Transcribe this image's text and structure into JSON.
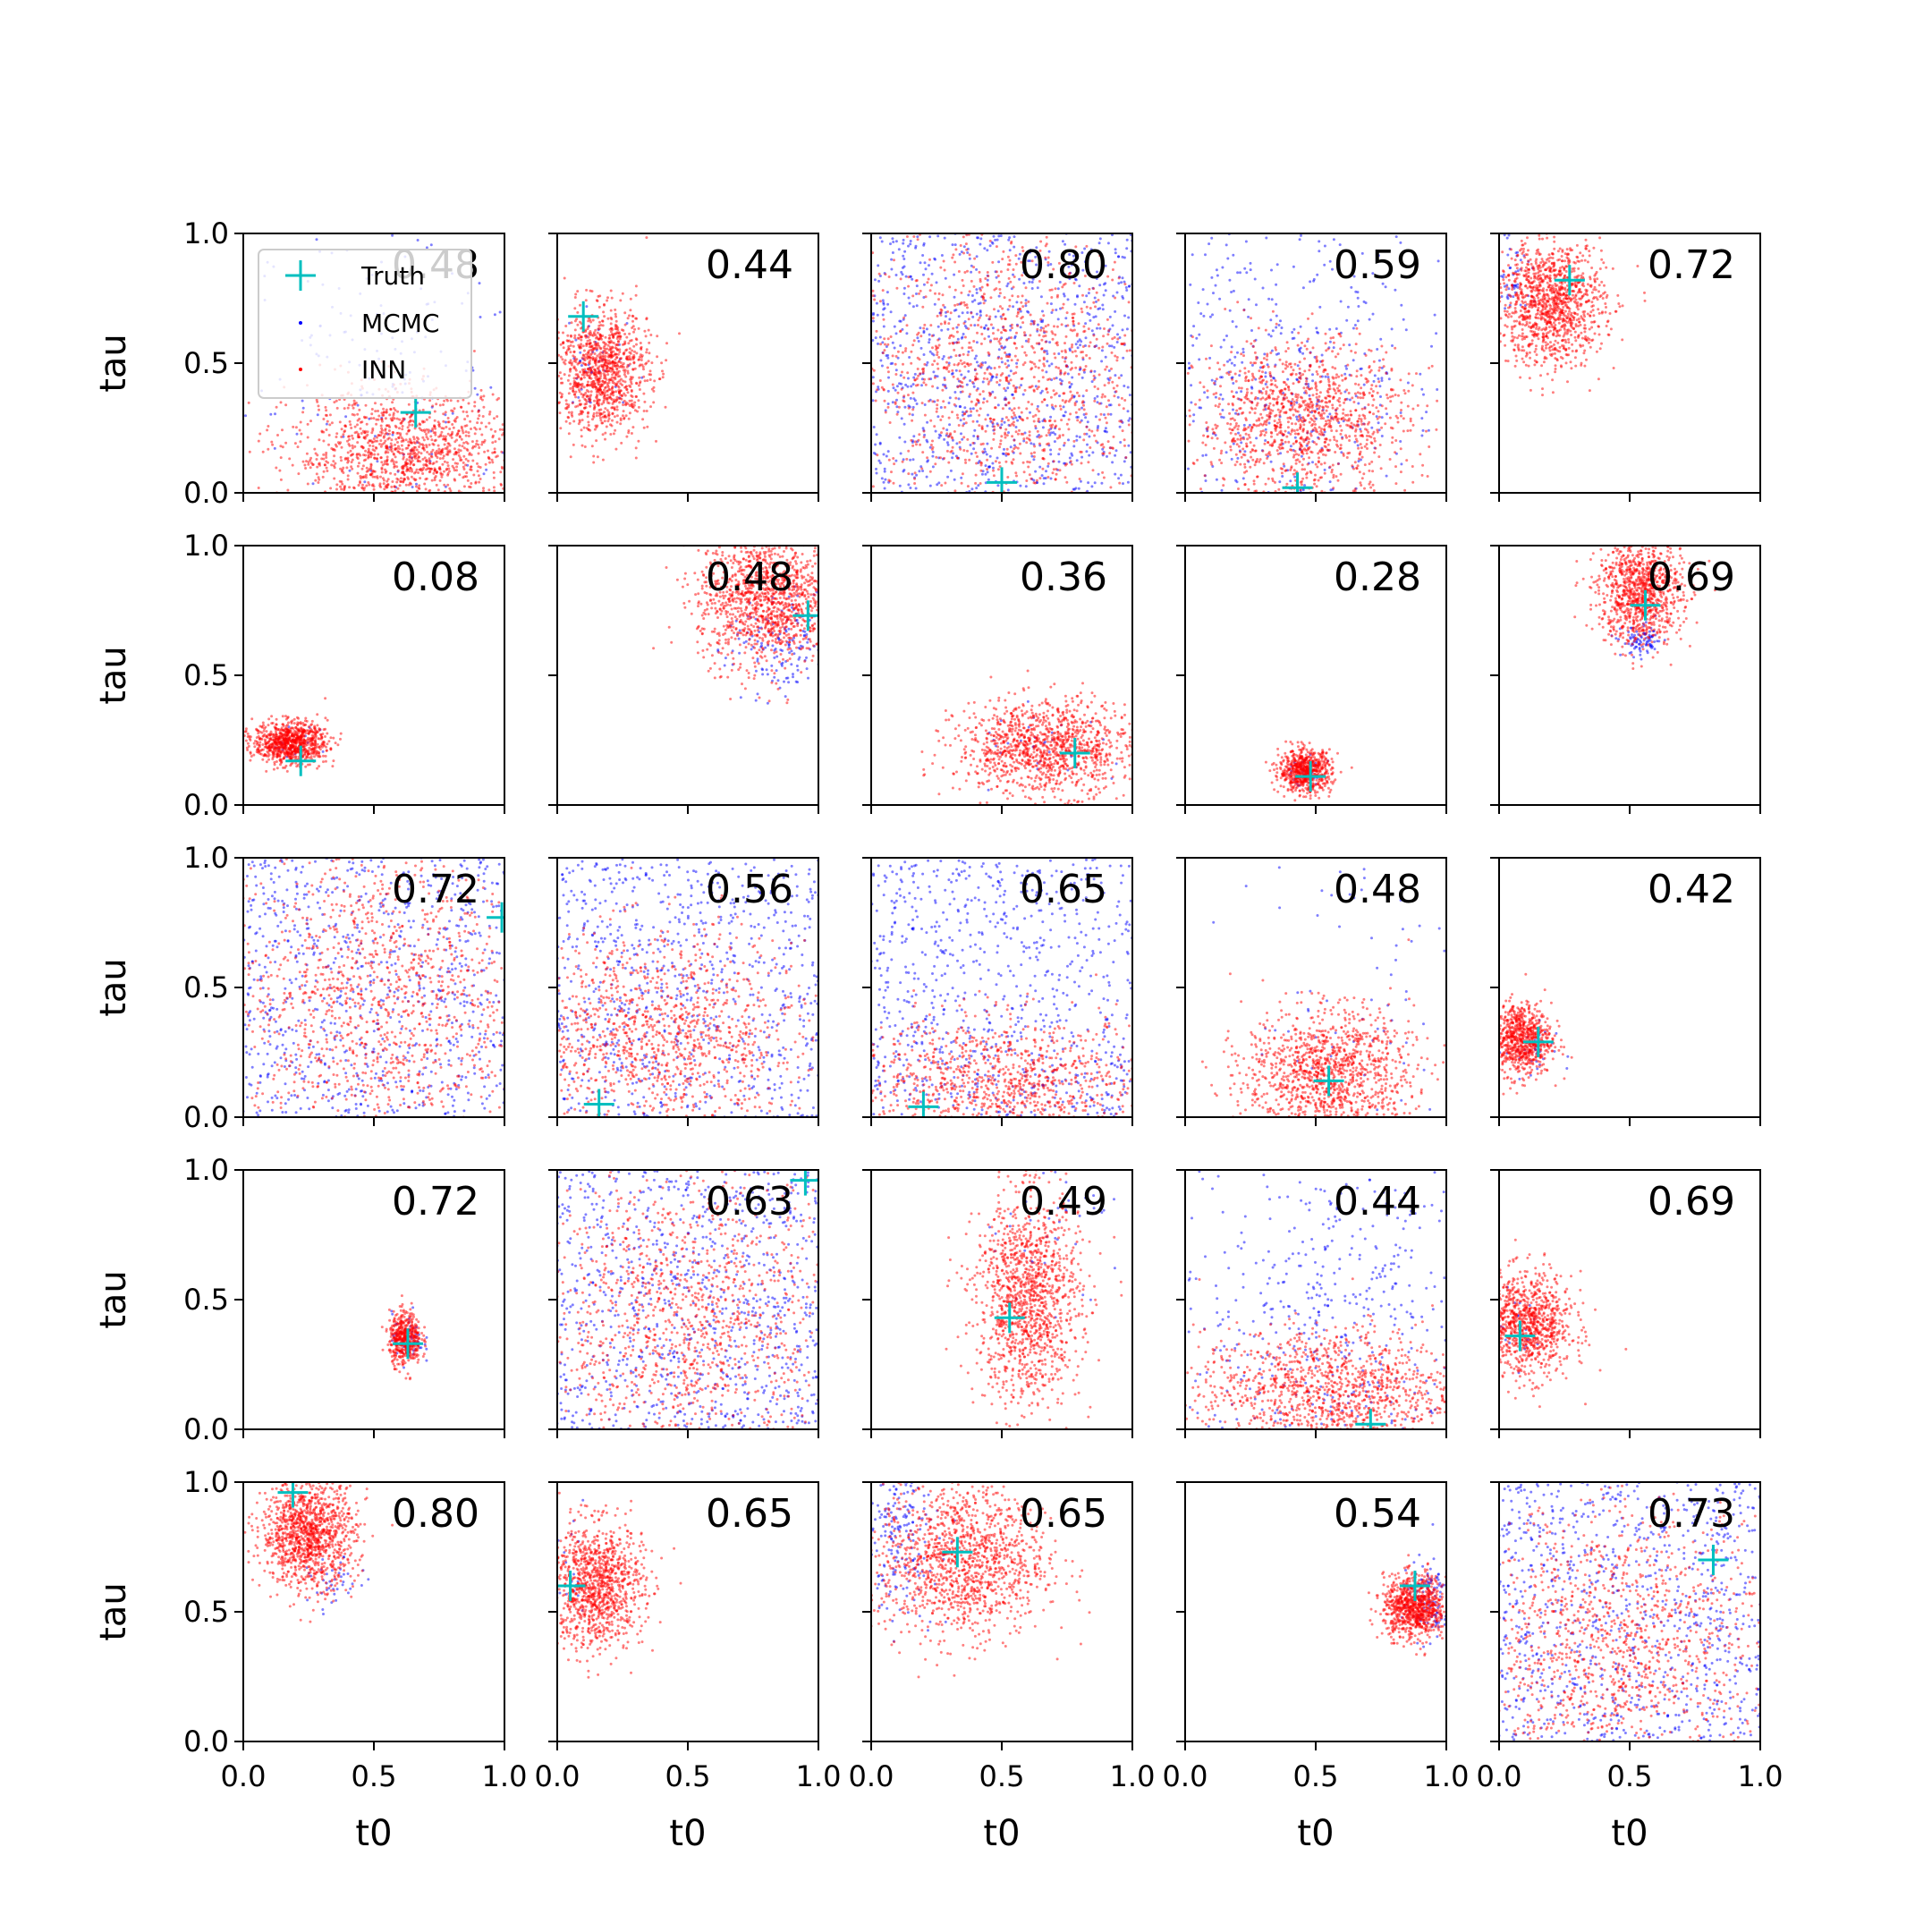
{
  "figure": {
    "ylabel": "tau",
    "xlabel": "t0",
    "legend": {
      "placement": "upper-left of first panel",
      "entries": [
        "Truth",
        "MCMC",
        "INN"
      ]
    },
    "colors": {
      "mcmc": "#0000ff",
      "inn": "#ff0000",
      "truth": "#00bfbf",
      "axis": "#000000"
    }
  },
  "chart_data": {
    "type": "scatter",
    "layout": "5x5 grid of panels",
    "xlabel": "t0",
    "ylabel": "tau",
    "xlim": [
      0,
      1
    ],
    "ylim": [
      0,
      1
    ],
    "xticks": [
      "0.0",
      "0.5",
      "1.0"
    ],
    "yticks": [
      "0.0",
      "0.5",
      "1.0"
    ],
    "grid": false,
    "legend": "upper-left",
    "series_names": [
      "Truth",
      "MCMC",
      "INN"
    ],
    "panels": [
      {
        "score": "0.48",
        "truth": [
          0.66,
          0.31
        ],
        "inn": {
          "cx": 0.62,
          "cy": 0.15,
          "sx": 0.22,
          "sy": 0.12,
          "n": 1300
        },
        "mcmc": {
          "cx": 0.6,
          "cy": 0.45,
          "sx": 0.28,
          "sy": 0.3,
          "n": 180
        }
      },
      {
        "score": "0.44",
        "truth": [
          0.1,
          0.68
        ],
        "inn": {
          "cx": 0.17,
          "cy": 0.47,
          "sx": 0.09,
          "sy": 0.12,
          "n": 1100
        },
        "mcmc": {
          "cx": 0.15,
          "cy": 0.5,
          "sx": 0.08,
          "sy": 0.1,
          "n": 40
        }
      },
      {
        "score": "0.80",
        "truth": [
          0.5,
          0.04
        ],
        "inn": {
          "cx": 0.5,
          "cy": 0.45,
          "sx": 0.3,
          "sy": 0.3,
          "n": 1300
        },
        "mcmc": {
          "cx": 0.5,
          "cy": 0.5,
          "sx": 0.6,
          "sy": 0.6,
          "n": 900
        }
      },
      {
        "score": "0.59",
        "truth": [
          0.43,
          0.02
        ],
        "inn": {
          "cx": 0.45,
          "cy": 0.28,
          "sx": 0.2,
          "sy": 0.15,
          "n": 1200
        },
        "mcmc": {
          "cx": 0.35,
          "cy": 0.4,
          "sx": 0.35,
          "sy": 0.35,
          "n": 600
        }
      },
      {
        "score": "0.72",
        "truth": [
          0.27,
          0.82
        ],
        "inn": {
          "cx": 0.2,
          "cy": 0.73,
          "sx": 0.1,
          "sy": 0.12,
          "n": 1200
        },
        "mcmc": {
          "cx": 0.05,
          "cy": 0.85,
          "sx": 0.05,
          "sy": 0.1,
          "n": 60
        }
      },
      {
        "score": "0.08",
        "truth": [
          0.22,
          0.17
        ],
        "inn": {
          "cx": 0.18,
          "cy": 0.24,
          "sx": 0.07,
          "sy": 0.04,
          "n": 900
        },
        "mcmc": {
          "cx": 0.18,
          "cy": 0.24,
          "sx": 0.06,
          "sy": 0.03,
          "n": 20
        }
      },
      {
        "score": "0.48",
        "truth": [
          0.96,
          0.73
        ],
        "inn": {
          "cx": 0.8,
          "cy": 0.8,
          "sx": 0.13,
          "sy": 0.13,
          "n": 1300
        },
        "mcmc": {
          "cx": 0.85,
          "cy": 0.6,
          "sx": 0.1,
          "sy": 0.1,
          "n": 150
        }
      },
      {
        "score": "0.36",
        "truth": [
          0.78,
          0.2
        ],
        "inn": {
          "cx": 0.67,
          "cy": 0.22,
          "sx": 0.17,
          "sy": 0.09,
          "n": 1200
        },
        "mcmc": {
          "cx": 0.7,
          "cy": 0.2,
          "sx": 0.15,
          "sy": 0.08,
          "n": 30
        }
      },
      {
        "score": "0.28",
        "truth": [
          0.48,
          0.11
        ],
        "inn": {
          "cx": 0.46,
          "cy": 0.13,
          "sx": 0.05,
          "sy": 0.04,
          "n": 700
        },
        "mcmc": {
          "cx": 0.45,
          "cy": 0.13,
          "sx": 0.04,
          "sy": 0.03,
          "n": 30
        }
      },
      {
        "score": "0.69",
        "truth": [
          0.56,
          0.77
        ],
        "inn": {
          "cx": 0.54,
          "cy": 0.82,
          "sx": 0.08,
          "sy": 0.1,
          "n": 1000
        },
        "mcmc": {
          "cx": 0.55,
          "cy": 0.63,
          "sx": 0.04,
          "sy": 0.03,
          "n": 90
        }
      },
      {
        "score": "0.72",
        "truth": [
          0.99,
          0.77
        ],
        "inn": {
          "cx": 0.5,
          "cy": 0.45,
          "sx": 0.32,
          "sy": 0.3,
          "n": 1300
        },
        "mcmc": {
          "cx": 0.55,
          "cy": 0.5,
          "sx": 0.6,
          "sy": 0.6,
          "n": 800
        }
      },
      {
        "score": "0.56",
        "truth": [
          0.16,
          0.05
        ],
        "inn": {
          "cx": 0.4,
          "cy": 0.3,
          "sx": 0.28,
          "sy": 0.2,
          "n": 1200
        },
        "mcmc": {
          "cx": 0.5,
          "cy": 0.5,
          "sx": 0.6,
          "sy": 0.6,
          "n": 800
        }
      },
      {
        "score": "0.65",
        "truth": [
          0.2,
          0.04
        ],
        "inn": {
          "cx": 0.5,
          "cy": 0.12,
          "sx": 0.3,
          "sy": 0.13,
          "n": 1100
        },
        "mcmc": {
          "cx": 0.5,
          "cy": 0.5,
          "sx": 0.6,
          "sy": 0.6,
          "n": 800
        }
      },
      {
        "score": "0.48",
        "truth": [
          0.55,
          0.14
        ],
        "inn": {
          "cx": 0.55,
          "cy": 0.17,
          "sx": 0.16,
          "sy": 0.12,
          "n": 1200
        },
        "mcmc": {
          "cx": 0.6,
          "cy": 0.5,
          "sx": 0.25,
          "sy": 0.4,
          "n": 80
        }
      },
      {
        "score": "0.42",
        "truth": [
          0.15,
          0.29
        ],
        "inn": {
          "cx": 0.08,
          "cy": 0.3,
          "sx": 0.06,
          "sy": 0.07,
          "n": 800
        },
        "mcmc": {
          "cx": 0.12,
          "cy": 0.25,
          "sx": 0.05,
          "sy": 0.06,
          "n": 30
        }
      },
      {
        "score": "0.72",
        "truth": [
          0.63,
          0.33
        ],
        "inn": {
          "cx": 0.62,
          "cy": 0.35,
          "sx": 0.03,
          "sy": 0.05,
          "n": 500
        },
        "mcmc": {
          "cx": 0.63,
          "cy": 0.35,
          "sx": 0.03,
          "sy": 0.05,
          "n": 60
        }
      },
      {
        "score": "0.63",
        "truth": [
          0.95,
          0.96
        ],
        "inn": {
          "cx": 0.5,
          "cy": 0.4,
          "sx": 0.3,
          "sy": 0.3,
          "n": 1300
        },
        "mcmc": {
          "cx": 0.5,
          "cy": 0.5,
          "sx": 0.6,
          "sy": 0.6,
          "n": 900
        }
      },
      {
        "score": "0.49",
        "truth": [
          0.53,
          0.43
        ],
        "inn": {
          "cx": 0.6,
          "cy": 0.5,
          "sx": 0.1,
          "sy": 0.2,
          "n": 1300
        },
        "mcmc": {
          "cx": 0.7,
          "cy": 0.8,
          "sx": 0.15,
          "sy": 0.15,
          "n": 40
        }
      },
      {
        "score": "0.44",
        "truth": [
          0.71,
          0.02
        ],
        "inn": {
          "cx": 0.55,
          "cy": 0.15,
          "sx": 0.25,
          "sy": 0.12,
          "n": 1200
        },
        "mcmc": {
          "cx": 0.6,
          "cy": 0.45,
          "sx": 0.35,
          "sy": 0.35,
          "n": 600
        }
      },
      {
        "score": "0.69",
        "truth": [
          0.08,
          0.36
        ],
        "inn": {
          "cx": 0.1,
          "cy": 0.4,
          "sx": 0.09,
          "sy": 0.1,
          "n": 1000
        },
        "mcmc": {
          "cx": 0.05,
          "cy": 0.4,
          "sx": 0.04,
          "sy": 0.06,
          "n": 20
        }
      },
      {
        "score": "0.80",
        "truth": [
          0.19,
          0.96
        ],
        "inn": {
          "cx": 0.25,
          "cy": 0.8,
          "sx": 0.09,
          "sy": 0.1,
          "n": 1200
        },
        "mcmc": {
          "cx": 0.35,
          "cy": 0.6,
          "sx": 0.05,
          "sy": 0.05,
          "n": 40
        }
      },
      {
        "score": "0.65",
        "truth": [
          0.05,
          0.6
        ],
        "inn": {
          "cx": 0.15,
          "cy": 0.6,
          "sx": 0.09,
          "sy": 0.12,
          "n": 1100
        },
        "mcmc": {
          "cx": 0.05,
          "cy": 0.6,
          "sx": 0.04,
          "sy": 0.1,
          "n": 20
        }
      },
      {
        "score": "0.65",
        "truth": [
          0.33,
          0.73
        ],
        "inn": {
          "cx": 0.35,
          "cy": 0.7,
          "sx": 0.16,
          "sy": 0.15,
          "n": 1300
        },
        "mcmc": {
          "cx": 0.1,
          "cy": 0.8,
          "sx": 0.08,
          "sy": 0.15,
          "n": 200
        }
      },
      {
        "score": "0.54",
        "truth": [
          0.88,
          0.6
        ],
        "inn": {
          "cx": 0.88,
          "cy": 0.52,
          "sx": 0.06,
          "sy": 0.06,
          "n": 900
        },
        "mcmc": {
          "cx": 0.93,
          "cy": 0.55,
          "sx": 0.05,
          "sy": 0.08,
          "n": 120
        }
      },
      {
        "score": "0.73",
        "truth": [
          0.82,
          0.7
        ],
        "inn": {
          "cx": 0.45,
          "cy": 0.35,
          "sx": 0.3,
          "sy": 0.28,
          "n": 1300
        },
        "mcmc": {
          "cx": 0.5,
          "cy": 0.5,
          "sx": 0.6,
          "sy": 0.6,
          "n": 900
        }
      }
    ]
  }
}
